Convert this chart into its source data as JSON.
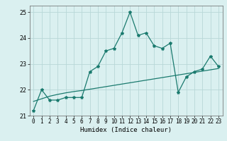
{
  "x": [
    0,
    1,
    2,
    3,
    4,
    5,
    6,
    7,
    8,
    9,
    10,
    11,
    12,
    13,
    14,
    15,
    16,
    17,
    18,
    19,
    20,
    21,
    22,
    23
  ],
  "y_line": [
    21.2,
    22.0,
    21.6,
    21.6,
    21.7,
    21.7,
    21.7,
    22.7,
    22.9,
    23.5,
    23.6,
    24.2,
    25.0,
    24.1,
    24.2,
    23.7,
    23.6,
    23.8,
    21.9,
    22.5,
    22.7,
    22.8,
    23.3,
    22.9
  ],
  "y_trend": [
    21.55,
    21.65,
    21.75,
    21.82,
    21.88,
    21.93,
    21.97,
    22.02,
    22.07,
    22.12,
    22.17,
    22.22,
    22.27,
    22.32,
    22.37,
    22.42,
    22.47,
    22.52,
    22.57,
    22.62,
    22.67,
    22.72,
    22.77,
    22.82
  ],
  "xlim": [
    -0.5,
    23.5
  ],
  "ylim": [
    21.0,
    25.25
  ],
  "yticks": [
    21,
    22,
    23,
    24,
    25
  ],
  "xticks": [
    0,
    1,
    2,
    3,
    4,
    5,
    6,
    7,
    8,
    9,
    10,
    11,
    12,
    13,
    14,
    15,
    16,
    17,
    18,
    19,
    20,
    21,
    22,
    23
  ],
  "xlabel": "Humidex (Indice chaleur)",
  "line_color": "#1a7a6e",
  "trend_color": "#1a7a6e",
  "bg_color": "#daf0f0",
  "grid_color": "#b8d8d8",
  "marker": "*",
  "tick_fontsize": 5.5,
  "xlabel_fontsize": 6.5
}
